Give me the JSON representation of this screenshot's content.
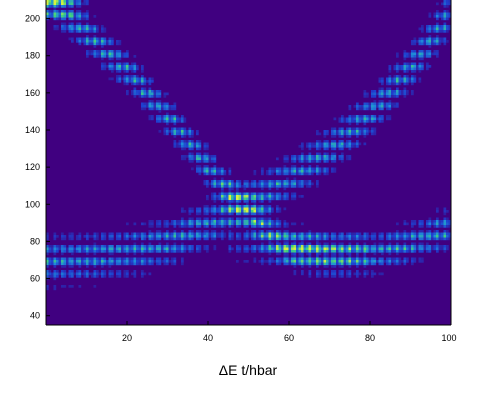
{
  "chart_data": {
    "type": "heatmap",
    "title": "",
    "xlabel": "ΔE t/hbar",
    "ylabel": "",
    "xlim": [
      0,
      100
    ],
    "ylim": [
      35,
      210
    ],
    "x_ticks": [
      20,
      40,
      60,
      80,
      100
    ],
    "y_ticks": [
      40,
      60,
      80,
      100,
      120,
      140,
      160,
      180,
      200
    ],
    "x_tick_labels": [
      "20",
      "40",
      "60",
      "80",
      "100"
    ],
    "y_tick_labels": [
      "40",
      "60",
      "80",
      "100",
      "120",
      "140",
      "160",
      "180",
      "200"
    ],
    "grid": false,
    "legend": "none",
    "colormap": [
      "#3f007a",
      "#1f3fcf",
      "#1f8fd8",
      "#3fd07f",
      "#d8f23f"
    ],
    "background_color": "#400080",
    "band": {
      "center_x": [
        0,
        10,
        20,
        30,
        40,
        50,
        60,
        70,
        80,
        90,
        100
      ],
      "left_y": [
        212,
        192,
        172,
        147,
        120,
        95,
        76,
        72,
        74,
        80,
        88
      ],
      "right_y": [
        70,
        72,
        75,
        80,
        90,
        102,
        115,
        130,
        150,
        175,
        205
      ],
      "hot_spot": {
        "x": [
          50,
          75
        ],
        "y": [
          70,
          85
        ]
      },
      "corner_peak": {
        "x": [
          0,
          5
        ],
        "y": [
          200,
          210
        ]
      }
    }
  }
}
